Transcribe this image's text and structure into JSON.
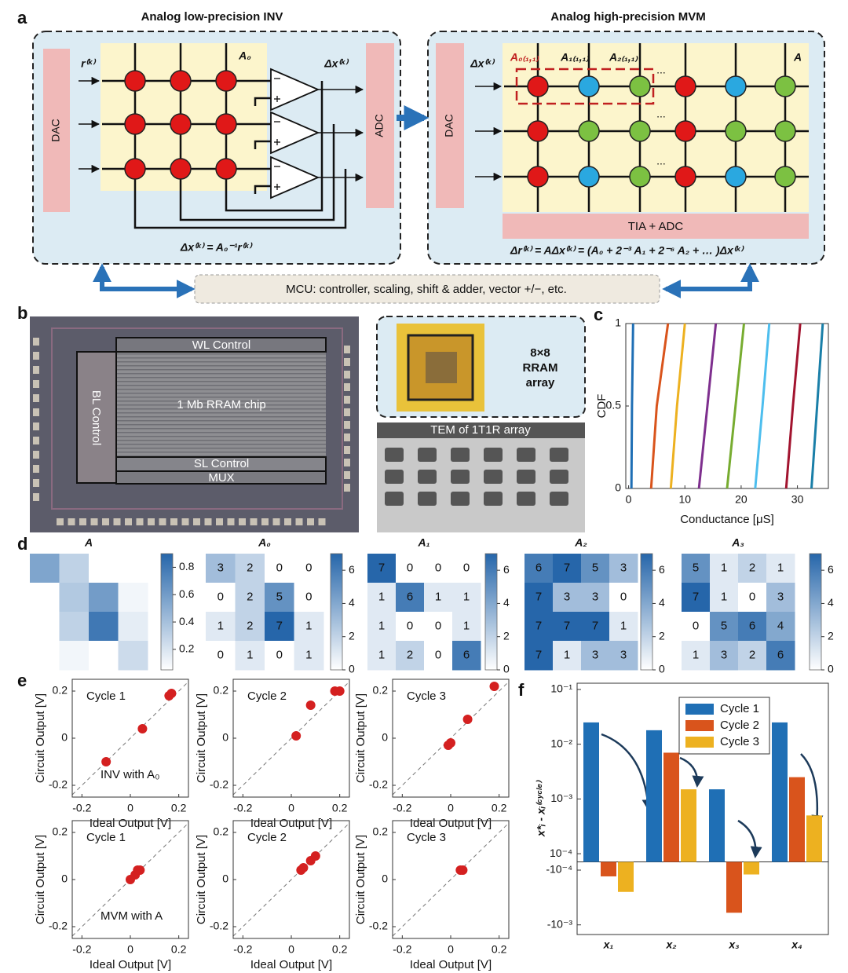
{
  "panel_labels": [
    "a",
    "b",
    "c",
    "d",
    "e",
    "f"
  ],
  "panel_a": {
    "inv_title": "Analog low-precision INV",
    "mvm_title": "Analog high-precision MVM",
    "dac_left": "DAC",
    "adc": "ADC",
    "dac_right": "DAC",
    "input_r": "r⁽ᵏ⁾",
    "matrix_a0": "A₀",
    "output_dx": "Δx⁽ᵏ⁾",
    "input_dx": "Δx⁽ᵏ⁾",
    "matrix_a": "A",
    "slice_labels": [
      "A₀₍₁,₁₎",
      "A₁₍₁,₁₎",
      "A₂₍₁,₁₎"
    ],
    "ellipsis": "...",
    "tia_adc": "TIA + ADC",
    "inv_equation": "Δx⁽ᵏ⁾ = A₀⁻¹r⁽ᵏ⁾",
    "mvm_equation": "Δr⁽ᵏ⁾ = AΔx⁽ᵏ⁾ = (A₀ + 2⁻³ A₁ + 2⁻⁶ A₂ + … )Δx⁽ᵏ⁾",
    "mcu": "MCU: controller, scaling, shift & adder, vector +/−, etc."
  },
  "panel_b": {
    "wl": "WL Control",
    "bl": "BL Control",
    "chip": "1 Mb RRAM chip",
    "sl": "SL Control",
    "mux": "MUX",
    "inset_lines": [
      "8×8",
      "RRAM",
      "array"
    ],
    "tem": "TEM of 1T1R array"
  },
  "chart_data": [
    {
      "type": "line",
      "xlabel": "Conductance [μS]",
      "ylabel": "CDF",
      "xlim": [
        -0.5,
        35.5
      ],
      "ylim": [
        0,
        1
      ],
      "xticks": [
        0,
        10,
        20,
        30
      ],
      "yticks": [
        0,
        0.5,
        1
      ],
      "series": [
        {
          "color": "#1f6fb5",
          "x": [
            0.5,
            0.6,
            0.8
          ],
          "values": [
            0,
            0.5,
            1
          ]
        },
        {
          "color": "#d9541c",
          "x": [
            4,
            5,
            7
          ],
          "values": [
            0,
            0.5,
            1
          ]
        },
        {
          "color": "#edb120",
          "x": [
            7.5,
            8.6,
            10
          ],
          "values": [
            0,
            0.5,
            1
          ]
        },
        {
          "color": "#7e2f8e",
          "x": [
            12.5,
            14,
            15.5
          ],
          "values": [
            0,
            0.5,
            1
          ]
        },
        {
          "color": "#77ac30",
          "x": [
            17.5,
            19,
            20.5
          ],
          "values": [
            0,
            0.5,
            1
          ]
        },
        {
          "color": "#4dbeee",
          "x": [
            22.5,
            23.8,
            25
          ],
          "values": [
            0,
            0.5,
            1
          ]
        },
        {
          "color": "#a2142f",
          "x": [
            28,
            29.2,
            30.5
          ],
          "values": [
            0,
            0.5,
            1
          ]
        },
        {
          "color": "#1a7fa8",
          "x": [
            32.5,
            33.5,
            34.5
          ],
          "values": [
            0,
            0.5,
            1
          ]
        }
      ]
    },
    {
      "type": "heatmap",
      "title": "A",
      "annotate": false,
      "colorbar_lim": [
        0.05,
        0.9
      ],
      "colorbar_ticks": [
        0.2,
        0.4,
        0.6,
        0.8
      ],
      "values": [
        [
          0.55,
          0.3,
          0.05,
          0.05
        ],
        [
          0.05,
          0.35,
          0.6,
          0.1
        ],
        [
          0.05,
          0.3,
          0.8,
          0.15
        ],
        [
          0.05,
          0.1,
          0.05,
          0.25
        ]
      ]
    },
    {
      "type": "heatmap",
      "title": "A₀",
      "annotate": true,
      "colorbar_lim": [
        0,
        7
      ],
      "colorbar_ticks": [
        0,
        2,
        4,
        6
      ],
      "values": [
        [
          3,
          2,
          0,
          0
        ],
        [
          0,
          2,
          5,
          0
        ],
        [
          1,
          2,
          7,
          1
        ],
        [
          0,
          1,
          0,
          1
        ]
      ]
    },
    {
      "type": "heatmap",
      "title": "A₁",
      "annotate": true,
      "colorbar_lim": [
        0,
        7
      ],
      "colorbar_ticks": [
        0,
        2,
        4,
        6
      ],
      "values": [
        [
          7,
          0,
          0,
          0
        ],
        [
          1,
          6,
          1,
          1
        ],
        [
          1,
          0,
          0,
          1
        ],
        [
          1,
          2,
          0,
          6
        ]
      ]
    },
    {
      "type": "heatmap",
      "title": "A₂",
      "annotate": true,
      "colorbar_lim": [
        0,
        7
      ],
      "colorbar_ticks": [
        0,
        2,
        4,
        6
      ],
      "values": [
        [
          6,
          7,
          5,
          3
        ],
        [
          7,
          3,
          3,
          0
        ],
        [
          7,
          7,
          7,
          1
        ],
        [
          7,
          1,
          3,
          3
        ]
      ]
    },
    {
      "type": "heatmap",
      "title": "A₃",
      "annotate": true,
      "colorbar_lim": [
        0,
        7
      ],
      "colorbar_ticks": [
        0,
        2,
        4,
        6
      ],
      "values": [
        [
          5,
          1,
          2,
          1
        ],
        [
          7,
          1,
          0,
          3
        ],
        [
          0,
          5,
          6,
          4
        ],
        [
          1,
          3,
          2,
          6
        ]
      ]
    },
    {
      "type": "scatter",
      "title": "Cycle 1",
      "annotation": "INV with A₀",
      "xlabel": "Ideal Output [V]",
      "ylabel": "Circuit Output [V]",
      "xlim": [
        -0.24,
        0.24
      ],
      "ylim": [
        -0.25,
        0.25
      ],
      "xticks": [
        -0.2,
        0,
        0.2
      ],
      "yticks": [
        -0.2,
        0,
        0.2
      ],
      "color": "#d42020",
      "x": [
        -0.1,
        0.05,
        0.16,
        0.17
      ],
      "values": [
        -0.1,
        0.04,
        0.18,
        0.19
      ]
    },
    {
      "type": "scatter",
      "title": "Cycle 2",
      "xlabel": "Ideal Output [V]",
      "ylabel": "Circuit Output [V]",
      "xlim": [
        -0.24,
        0.24
      ],
      "ylim": [
        -0.25,
        0.25
      ],
      "xticks": [
        -0.2,
        0,
        0.2
      ],
      "yticks": [
        -0.2,
        0,
        0.2
      ],
      "color": "#d42020",
      "x": [
        0.02,
        0.08,
        0.18,
        0.2
      ],
      "values": [
        0.01,
        0.14,
        0.2,
        0.2
      ]
    },
    {
      "type": "scatter",
      "title": "Cycle 3",
      "xlabel": "Ideal Output [V]",
      "ylabel": "Circuit Output [V]",
      "xlim": [
        -0.24,
        0.24
      ],
      "ylim": [
        -0.25,
        0.25
      ],
      "xticks": [
        -0.2,
        0,
        0.2
      ],
      "yticks": [
        -0.2,
        0,
        0.2
      ],
      "color": "#d42020",
      "x": [
        -0.01,
        0,
        0.07,
        0.18
      ],
      "values": [
        -0.03,
        -0.02,
        0.08,
        0.22
      ]
    },
    {
      "type": "scatter",
      "title": "Cycle 1",
      "annotation": "MVM with A",
      "xlabel": "Ideal Output [V]",
      "ylabel": "Circuit Output [V]",
      "xlim": [
        -0.24,
        0.24
      ],
      "ylim": [
        -0.25,
        0.25
      ],
      "xticks": [
        -0.2,
        0,
        0.2
      ],
      "yticks": [
        -0.2,
        0,
        0.2
      ],
      "color": "#d42020",
      "x": [
        0,
        0.02,
        0.03,
        0.04
      ],
      "values": [
        0,
        0.02,
        0.04,
        0.04
      ]
    },
    {
      "type": "scatter",
      "title": "Cycle 2",
      "xlabel": "Ideal Output [V]",
      "ylabel": "Circuit Output [V]",
      "xlim": [
        -0.24,
        0.24
      ],
      "ylim": [
        -0.25,
        0.25
      ],
      "xticks": [
        -0.2,
        0,
        0.2
      ],
      "yticks": [
        -0.2,
        0,
        0.2
      ],
      "color": "#d42020",
      "x": [
        0.04,
        0.05,
        0.08,
        0.1
      ],
      "values": [
        0.04,
        0.05,
        0.08,
        0.1
      ]
    },
    {
      "type": "scatter",
      "title": "Cycle 3",
      "xlabel": "Ideal Output [V]",
      "ylabel": "Circuit Output [V]",
      "xlim": [
        -0.24,
        0.24
      ],
      "ylim": [
        -0.25,
        0.25
      ],
      "xticks": [
        -0.2,
        0,
        0.2
      ],
      "yticks": [
        -0.2,
        0,
        0.2
      ],
      "color": "#d42020",
      "x": [
        0.04,
        0.05
      ],
      "values": [
        0.04,
        0.04
      ]
    },
    {
      "type": "bar",
      "yscale": "symlog",
      "linthresh": 0.0001,
      "ylabel": "x*ᵢ - xᵢ⁽ᶜʸᶜˡᵉ⁾",
      "ylim": [
        -0.0015,
        0.13
      ],
      "yticks": [
        {
          "value": 0.1,
          "label": "10⁻¹"
        },
        {
          "value": 0.01,
          "label": "10⁻²"
        },
        {
          "value": 0.001,
          "label": "10⁻³"
        },
        {
          "value": 0.0001,
          "label": "10⁻⁴"
        },
        {
          "value": -0.0001,
          "label": "-10⁻⁴"
        },
        {
          "value": -0.001,
          "label": "-10⁻³"
        }
      ],
      "categories": [
        "x₁",
        "x₂",
        "x₃",
        "x₄"
      ],
      "legend": "top",
      "series": [
        {
          "name": "Cycle 1",
          "color": "#1f6fb5",
          "values": [
            0.025,
            0.018,
            0.0015,
            0.025
          ]
        },
        {
          "name": "Cycle 2",
          "color": "#d9541c",
          "values": [
            -0.00013,
            0.007,
            -0.0006,
            0.0025
          ]
        },
        {
          "name": "Cycle 3",
          "color": "#edb120",
          "values": [
            -0.00025,
            0.0015,
            -0.00012,
            0.0005
          ]
        }
      ]
    }
  ]
}
